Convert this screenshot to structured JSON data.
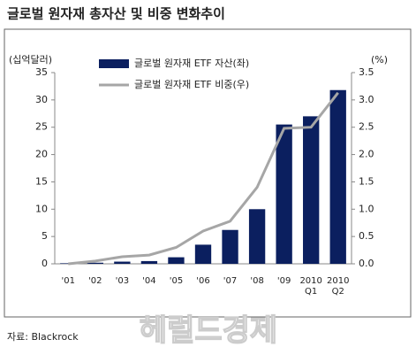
{
  "chart_data": {
    "type": "combo",
    "title": "글로벌 원자재 총자산 및 비중 변화추이",
    "y_unit": "(십억달러)",
    "y2_unit": "(%)",
    "categories": [
      "'01",
      "'02",
      "'03",
      "'04",
      "'05",
      "'06",
      "'07",
      "'08",
      "'09",
      "2010\nQ1",
      "2010\nQ2"
    ],
    "series": [
      {
        "name": "글로벌 원자재 ETF 자산(좌)",
        "type": "bar",
        "color": "#0b1f5f",
        "values": [
          0.1,
          0.2,
          0.4,
          0.5,
          1.2,
          3.5,
          6.2,
          10,
          25.5,
          27,
          31.8
        ]
      },
      {
        "name": "글로벌 원자재 ETF 비중(우)",
        "type": "line",
        "axis": "y2",
        "color": "#a6a6a6",
        "values": [
          0.0,
          0.05,
          0.13,
          0.16,
          0.3,
          0.6,
          0.78,
          1.4,
          2.48,
          2.5,
          3.13
        ]
      }
    ],
    "ylim": [
      0,
      35
    ],
    "yticks": [
      0,
      5,
      10,
      15,
      20,
      25,
      30,
      35
    ],
    "y2lim": [
      0,
      3.5
    ],
    "y2ticks": [
      {
        "value": 0,
        "label": "0.0"
      },
      0.5,
      {
        "value": 1,
        "label": "1.0"
      },
      1.5,
      {
        "value": 2,
        "label": "2.0"
      },
      2.5,
      {
        "value": 3,
        "label": "3.0"
      },
      3.5
    ]
  },
  "source": "자료: Blackrock",
  "watermark": "헤럴드경제"
}
